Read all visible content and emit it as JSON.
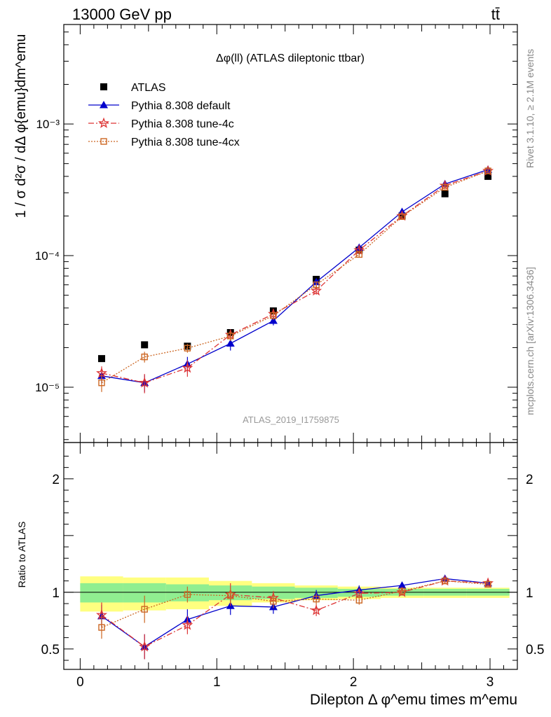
{
  "header": {
    "energy_label": "13000 GeV pp",
    "process_label": "tt̄"
  },
  "side": {
    "rivet_label": "Rivet 3.1.10, ≥ 2.1M events",
    "mcplots_label": "mcplots.cern.ch [arXiv:1306.3436]"
  },
  "analysis_id": "ATLAS_2019_I1759875",
  "chart_data": [
    {
      "type": "scatter",
      "title": "Δφ(ll) (ATLAS dileptonic ttbar)",
      "ylabel": "1 / σ  d²σ / dΔ φ{emu}dm^emu",
      "yscale": "log",
      "ylim": [
        3.8e-06,
        0.0057
      ],
      "xlim": [
        -0.12,
        3.2
      ],
      "y_ticks": [
        {
          "value": 1e-05,
          "label": "10⁻⁵"
        },
        {
          "value": 0.0001,
          "label": "10⁻⁴"
        },
        {
          "value": 0.001,
          "label": "10⁻³"
        }
      ],
      "legend_position": "top-left",
      "x": [
        0.157,
        0.471,
        0.785,
        1.1,
        1.414,
        1.728,
        2.042,
        2.356,
        2.67,
        2.985
      ],
      "series": [
        {
          "name": "ATLAS",
          "color": "#000000",
          "marker": "square",
          "values": [
            1.65e-05,
            2.1e-05,
            2.05e-05,
            2.6e-05,
            3.8e-05,
            6.6e-05,
            0.00011,
            0.0002,
            0.000295,
            0.0004
          ]
        },
        {
          "name": "Pythia 8.308 default",
          "color": "#0000cc",
          "marker": "triangle",
          "values": [
            1.22e-05,
            1.08e-05,
            1.5e-05,
            2.15e-05,
            3.2e-05,
            6.3e-05,
            0.000115,
            0.000215,
            0.00035,
            0.00045
          ],
          "errors": [
            1.5e-06,
            1.6e-06,
            2e-06,
            2.5e-06,
            2.5e-06,
            3.5e-06,
            5e-06,
            8e-06,
            1.2e-05,
            1.5e-05
          ]
        },
        {
          "name": "Pythia 8.308 tune-4c",
          "color": "#dd3333",
          "marker": "star",
          "values": [
            1.28e-05,
            1.08e-05,
            1.4e-05,
            2.5e-05,
            3.6e-05,
            5.4e-05,
            0.00011,
            0.0002,
            0.00034,
            0.00044
          ],
          "errors": [
            1.6e-06,
            1.8e-06,
            2e-06,
            2.5e-06,
            3e-06,
            3.5e-06,
            5e-06,
            8e-06,
            1.2e-05,
            1.5e-05
          ]
        },
        {
          "name": "Pythia 8.308 tune-4cx",
          "color": "#cc6622",
          "marker": "open-square",
          "values": [
            1.08e-05,
            1.7e-05,
            1.98e-05,
            2.45e-05,
            3.5e-05,
            6e-05,
            0.000102,
            0.000198,
            0.00033,
            0.00044
          ],
          "errors": [
            1.6e-06,
            1.6e-06,
            1.5e-06,
            2e-06,
            2.5e-06,
            3.5e-06,
            5e-06,
            8e-06,
            1.2e-05,
            1.5e-05
          ]
        }
      ]
    },
    {
      "type": "scatter",
      "ylabel": "Ratio to ATLAS",
      "xlabel": "Dilepton Δ φ^emu times m^emu",
      "ylim": [
        0.32,
        2.32
      ],
      "xlim": [
        -0.12,
        3.2
      ],
      "x_ticks": [
        {
          "value": 0,
          "label": "0"
        },
        {
          "value": 1,
          "label": "1"
        },
        {
          "value": 2,
          "label": "2"
        },
        {
          "value": 3,
          "label": "3"
        }
      ],
      "y_ticks": [
        {
          "value": 0.5,
          "label": "0.5"
        },
        {
          "value": 1,
          "label": "1"
        },
        {
          "value": 2,
          "label": "2"
        }
      ],
      "reference_line": 1,
      "band_edges": [
        0.0,
        0.314,
        0.628,
        0.942,
        1.257,
        1.571,
        1.885,
        2.199,
        2.513,
        2.827,
        3.142
      ],
      "uncertainty_bands": [
        {
          "name": "stat",
          "color": "#90ee90",
          "lo": [
            0.91,
            0.91,
            0.92,
            0.93,
            0.94,
            0.95,
            0.96,
            0.97,
            0.97,
            0.97
          ],
          "hi": [
            1.08,
            1.08,
            1.07,
            1.06,
            1.05,
            1.04,
            1.03,
            1.03,
            1.03,
            1.03
          ]
        },
        {
          "name": "total",
          "color": "#ffff80",
          "lo": [
            0.83,
            0.84,
            0.85,
            0.88,
            0.91,
            0.93,
            0.94,
            0.95,
            0.95,
            0.95
          ],
          "hi": [
            1.14,
            1.13,
            1.13,
            1.1,
            1.08,
            1.06,
            1.05,
            1.04,
            1.04,
            1.04
          ]
        }
      ],
      "x": [
        0.157,
        0.471,
        0.785,
        1.1,
        1.414,
        1.728,
        2.042,
        2.356,
        2.67,
        2.985
      ],
      "series": [
        {
          "name": "Pythia 8.308 default",
          "color": "#0000cc",
          "marker": "triangle",
          "values": [
            0.79,
            0.52,
            0.76,
            0.88,
            0.87,
            0.97,
            1.02,
            1.06,
            1.12,
            1.08
          ],
          "errors": [
            0.1,
            0.11,
            0.09,
            0.08,
            0.06,
            0.05,
            0.04,
            0.03,
            0.02,
            0.02
          ]
        },
        {
          "name": "Pythia 8.308 tune-4c",
          "color": "#dd3333",
          "marker": "star",
          "values": [
            0.8,
            0.52,
            0.71,
            0.98,
            0.95,
            0.84,
            0.99,
            1.0,
            1.1,
            1.08
          ],
          "errors": [
            0.11,
            0.11,
            0.08,
            0.1,
            0.06,
            0.05,
            0.04,
            0.03,
            0.02,
            0.02
          ]
        },
        {
          "name": "Pythia 8.308 tune-4cx",
          "color": "#cc6622",
          "marker": "open-square",
          "values": [
            0.69,
            0.85,
            0.98,
            0.97,
            0.92,
            0.94,
            0.93,
            1.01,
            1.1,
            1.07
          ],
          "errors": [
            0.1,
            0.12,
            0.07,
            0.07,
            0.06,
            0.05,
            0.04,
            0.03,
            0.02,
            0.02
          ]
        }
      ]
    }
  ]
}
